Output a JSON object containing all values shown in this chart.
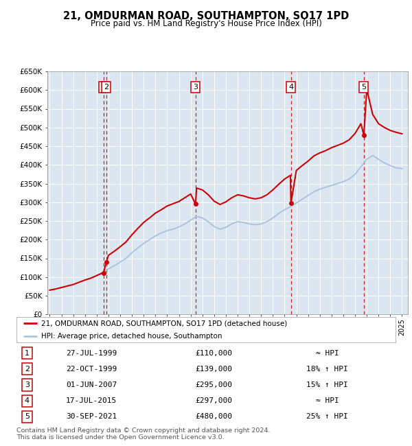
{
  "title": "21, OMDURMAN ROAD, SOUTHAMPTON, SO17 1PD",
  "subtitle": "Price paid vs. HM Land Registry's House Price Index (HPI)",
  "background_color": "#dce6f1",
  "ylim": [
    0,
    650000
  ],
  "yticks": [
    0,
    50000,
    100000,
    150000,
    200000,
    250000,
    300000,
    350000,
    400000,
    450000,
    500000,
    550000,
    600000,
    650000
  ],
  "ytick_labels": [
    "£0",
    "£50K",
    "£100K",
    "£150K",
    "£200K",
    "£250K",
    "£300K",
    "£350K",
    "£400K",
    "£450K",
    "£500K",
    "£550K",
    "£600K",
    "£650K"
  ],
  "xlim_start": 1994.8,
  "xlim_end": 2025.5,
  "sale_dates_year": [
    1999.57,
    1999.81,
    2007.42,
    2015.54,
    2021.75
  ],
  "sale_prices": [
    110000,
    139000,
    295000,
    297000,
    480000
  ],
  "sale_labels": [
    "1",
    "2",
    "3",
    "4",
    "5"
  ],
  "sale_line_color": "#cc0000",
  "hpi_line_color": "#aac4e0",
  "sale_marker_color": "#cc0000",
  "dashed_line_color": "#cc0000",
  "footer_text": "Contains HM Land Registry data © Crown copyright and database right 2024.\nThis data is licensed under the Open Government Licence v3.0.",
  "legend_line1": "21, OMDURMAN ROAD, SOUTHAMPTON, SO17 1PD (detached house)",
  "legend_line2": "HPI: Average price, detached house, Southampton",
  "table_entries": [
    {
      "label": "1",
      "date": "27-JUL-1999",
      "price": "£110,000",
      "hpi": "≈ HPI"
    },
    {
      "label": "2",
      "date": "22-OCT-1999",
      "price": "£139,000",
      "hpi": "18% ↑ HPI"
    },
    {
      "label": "3",
      "date": "01-JUN-2007",
      "price": "£295,000",
      "hpi": "15% ↑ HPI"
    },
    {
      "label": "4",
      "date": "17-JUL-2015",
      "price": "£297,000",
      "hpi": "≈ HPI"
    },
    {
      "label": "5",
      "date": "30-SEP-2021",
      "price": "£480,000",
      "hpi": "25% ↑ HPI"
    }
  ],
  "hpi_x": [
    1995.0,
    1995.5,
    1996.0,
    1996.5,
    1997.0,
    1997.5,
    1998.0,
    1998.5,
    1999.0,
    1999.5,
    2000.0,
    2000.5,
    2001.0,
    2001.5,
    2002.0,
    2002.5,
    2003.0,
    2003.5,
    2004.0,
    2004.5,
    2005.0,
    2005.5,
    2006.0,
    2006.5,
    2007.0,
    2007.5,
    2008.0,
    2008.5,
    2009.0,
    2009.5,
    2010.0,
    2010.5,
    2011.0,
    2011.5,
    2012.0,
    2012.5,
    2013.0,
    2013.5,
    2014.0,
    2014.5,
    2015.0,
    2015.5,
    2016.0,
    2016.5,
    2017.0,
    2017.5,
    2018.0,
    2018.5,
    2019.0,
    2019.5,
    2020.0,
    2020.5,
    2021.0,
    2021.5,
    2022.0,
    2022.5,
    2023.0,
    2023.5,
    2024.0,
    2024.5,
    2025.0
  ],
  "hpi_y": [
    65000,
    68000,
    72000,
    76000,
    80000,
    86000,
    92000,
    97000,
    104000,
    111000,
    122000,
    130000,
    140000,
    150000,
    165000,
    178000,
    190000,
    200000,
    210000,
    218000,
    224000,
    228000,
    234000,
    242000,
    252000,
    262000,
    258000,
    248000,
    235000,
    228000,
    233000,
    242000,
    248000,
    246000,
    242000,
    240000,
    242000,
    248000,
    258000,
    270000,
    280000,
    288000,
    298000,
    308000,
    318000,
    328000,
    335000,
    340000,
    345000,
    350000,
    355000,
    362000,
    375000,
    395000,
    415000,
    425000,
    415000,
    405000,
    398000,
    392000,
    390000
  ],
  "prop_x": [
    1995.0,
    1995.5,
    1996.0,
    1996.5,
    1997.0,
    1997.5,
    1998.0,
    1998.5,
    1999.0,
    1999.5,
    1999.57,
    1999.81,
    2000.0,
    2000.5,
    2001.0,
    2001.5,
    2002.0,
    2002.5,
    2003.0,
    2003.5,
    2004.0,
    2004.5,
    2005.0,
    2005.5,
    2006.0,
    2006.5,
    2007.0,
    2007.42,
    2007.5,
    2008.0,
    2008.5,
    2009.0,
    2009.5,
    2010.0,
    2010.5,
    2011.0,
    2011.5,
    2012.0,
    2012.5,
    2013.0,
    2013.5,
    2014.0,
    2014.5,
    2015.0,
    2015.5,
    2015.54,
    2016.0,
    2016.5,
    2017.0,
    2017.5,
    2018.0,
    2018.5,
    2019.0,
    2019.5,
    2020.0,
    2020.5,
    2021.0,
    2021.5,
    2021.75,
    2022.0,
    2022.5,
    2023.0,
    2023.5,
    2024.0,
    2024.5,
    2025.0
  ],
  "prop_y": [
    65000,
    68000,
    72000,
    76000,
    80000,
    86000,
    92000,
    97000,
    104000,
    111000,
    110000,
    139000,
    158000,
    169000,
    181000,
    194000,
    213000,
    230000,
    246000,
    258000,
    271000,
    280000,
    290000,
    296000,
    302000,
    312000,
    322000,
    295000,
    338000,
    333000,
    320000,
    303000,
    294000,
    301000,
    312000,
    320000,
    317000,
    312000,
    309000,
    312000,
    320000,
    333000,
    348000,
    362000,
    372000,
    297000,
    385000,
    398000,
    410000,
    424000,
    432000,
    438000,
    446000,
    452000,
    458000,
    467000,
    484000,
    510000,
    480000,
    602000,
    535000,
    510000,
    500000,
    492000,
    487000,
    483000
  ]
}
